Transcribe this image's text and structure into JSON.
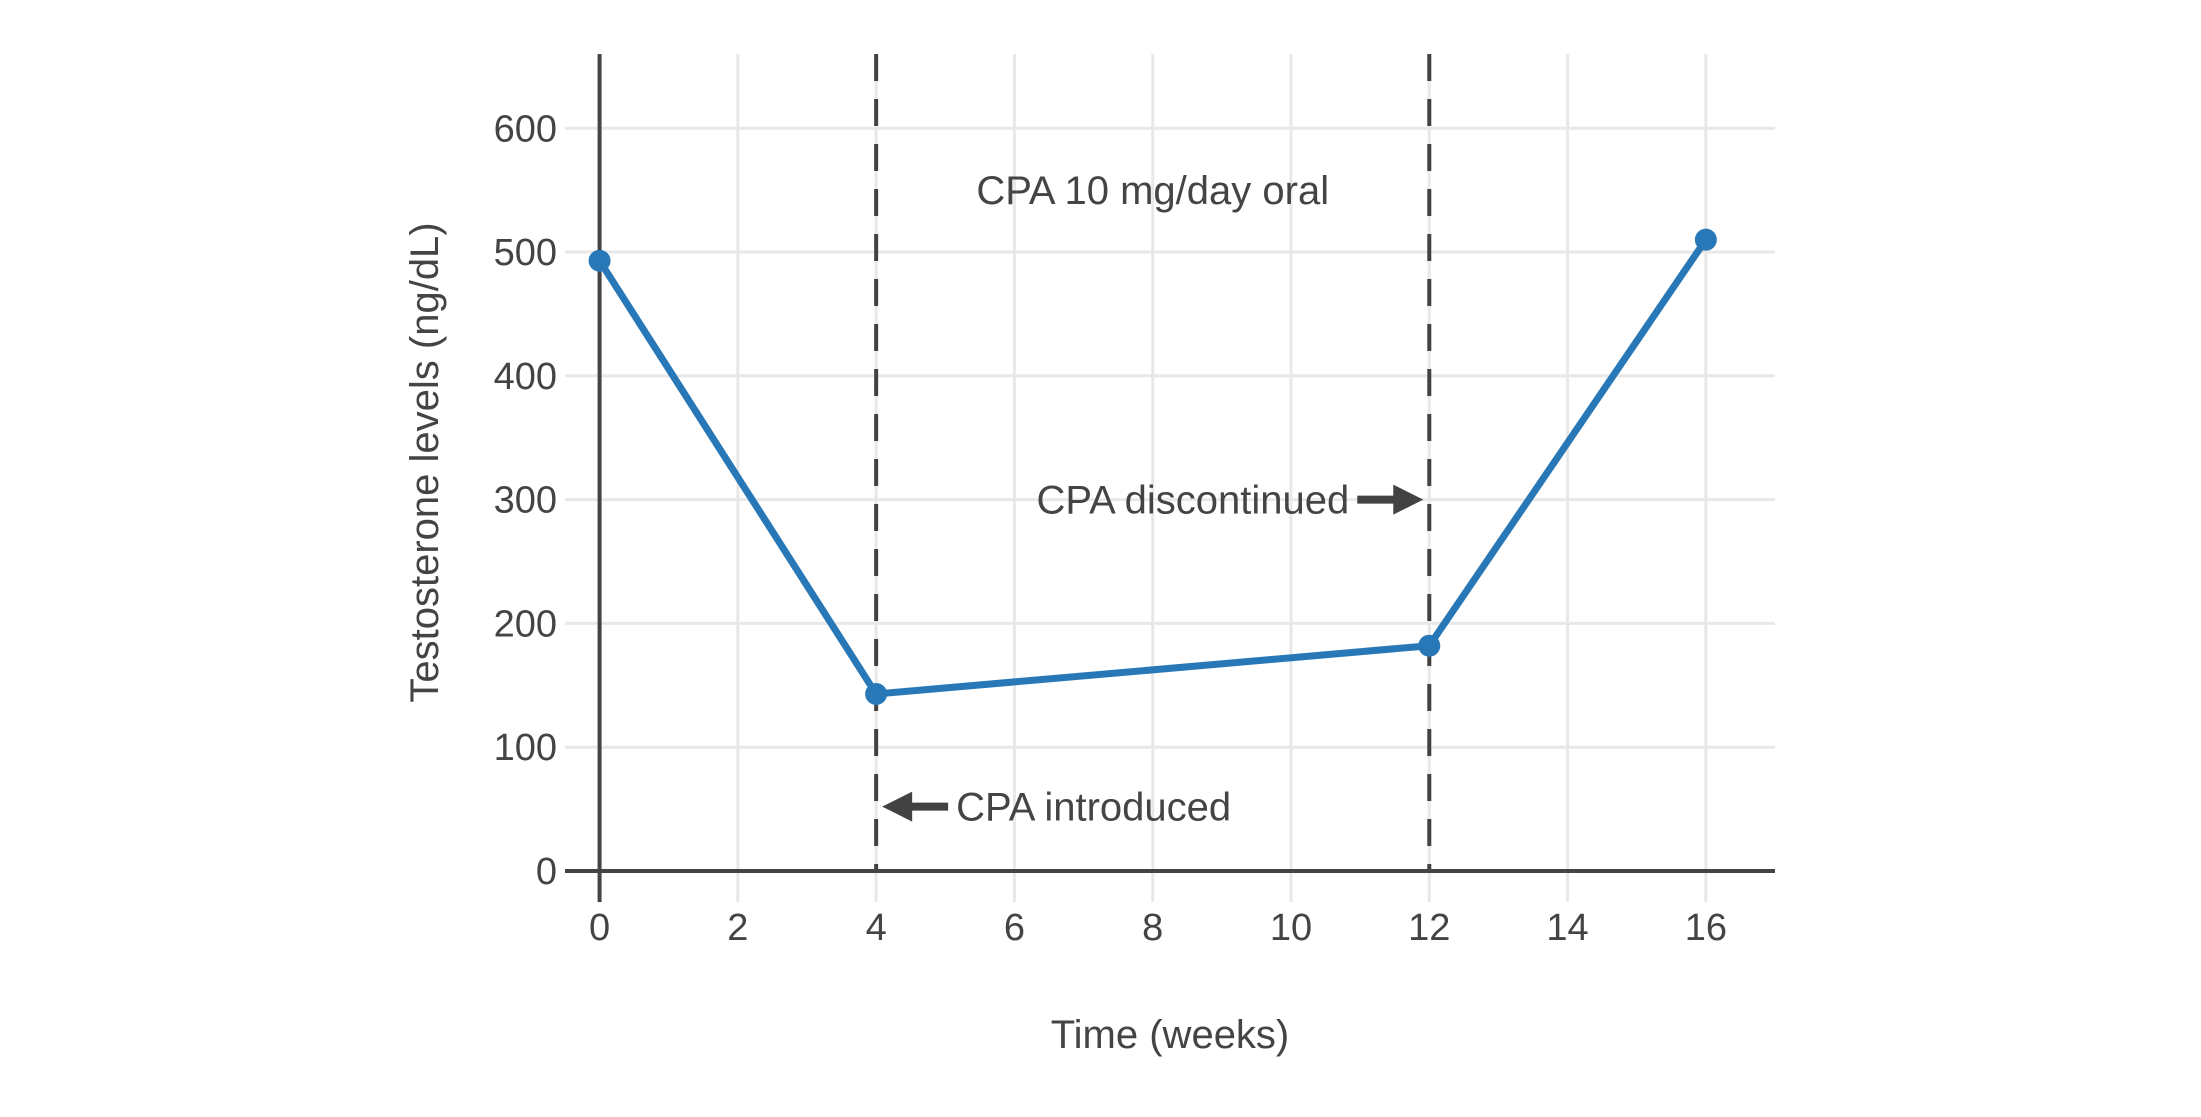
{
  "chart_data": {
    "type": "line",
    "x": [
      0,
      4,
      12,
      16
    ],
    "y": [
      493,
      143,
      182,
      510
    ],
    "xlabel": "Time (weeks)",
    "ylabel": "Testosterone levels (ng/dL)",
    "x_ticks": [
      0,
      2,
      4,
      6,
      8,
      10,
      12,
      14,
      16
    ],
    "y_ticks": [
      0,
      100,
      200,
      300,
      400,
      500,
      600
    ],
    "x_range": [
      -0.5,
      17
    ],
    "y_range": [
      0,
      660
    ],
    "grid": true,
    "legend": false,
    "line_color": "#2878b8",
    "marker": "circle",
    "vlines": [
      {
        "x": 4,
        "style": "dashed"
      },
      {
        "x": 12,
        "style": "dashed"
      }
    ],
    "annotations": [
      {
        "id": "treatment-label",
        "text": "CPA 10 mg/day oral",
        "x": 8,
        "y": 550,
        "anchor": "middle",
        "arrow": null
      },
      {
        "id": "cpa-discontinued",
        "text": "CPA discontinued",
        "x": 12,
        "y": 300,
        "anchor": "end",
        "arrow": "right"
      },
      {
        "id": "cpa-introduced",
        "text": "CPA introduced",
        "x": 4,
        "y": 52,
        "anchor": "start",
        "arrow": "left"
      }
    ]
  },
  "colors": {
    "line": "#2878b8",
    "text": "#444444",
    "axis": "#444444",
    "dashed": "#424242",
    "grid": "#e8e8e8",
    "background": "#ffffff"
  }
}
